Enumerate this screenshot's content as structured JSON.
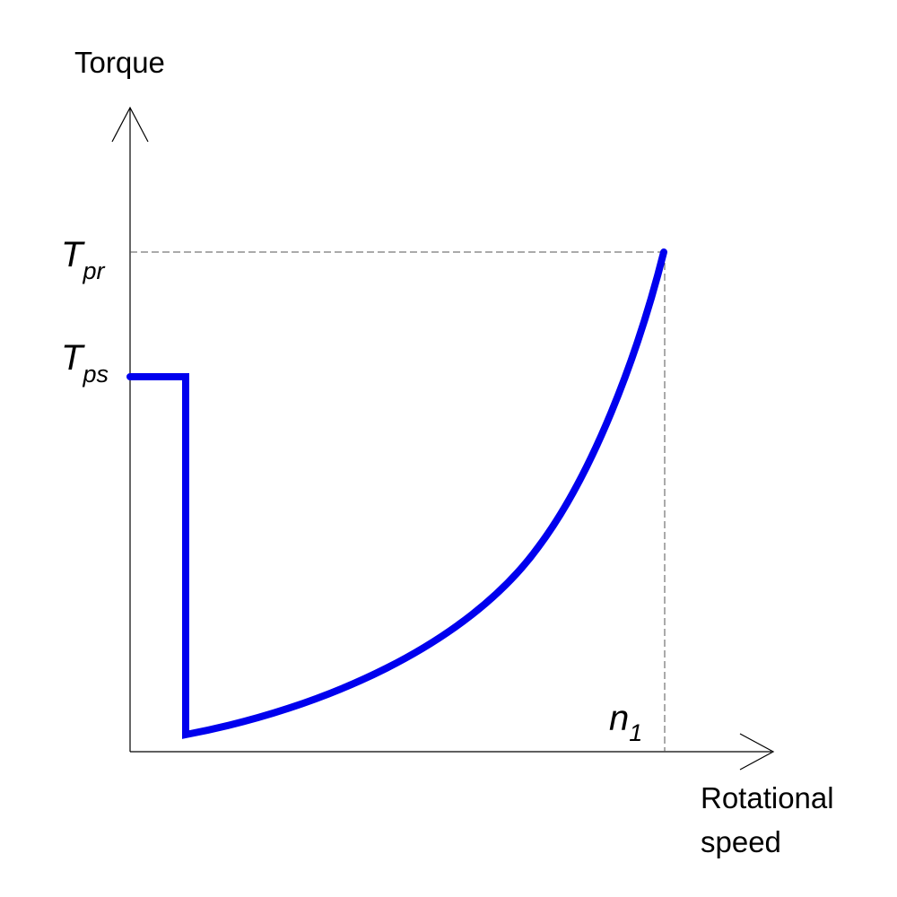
{
  "diagram": {
    "y_axis_title": "Torque",
    "x_axis_title_line1": "Rotational",
    "x_axis_title_line2": "speed",
    "tpr": {
      "main": "T",
      "sub": "pr"
    },
    "tps": {
      "main": "T",
      "sub": "ps"
    },
    "n1": {
      "main": "n",
      "sub": "1"
    },
    "colors": {
      "curve": "#0000ee",
      "axes": "#000000",
      "guides": "#555555"
    }
  }
}
